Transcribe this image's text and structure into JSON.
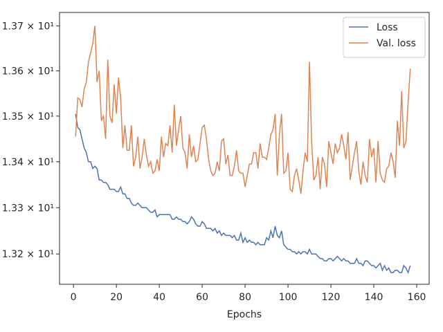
{
  "chart_data": {
    "type": "line",
    "x_label": "Epochs",
    "yscale": "log",
    "legend": "upper right",
    "x": [
      1,
      2,
      3,
      4,
      5,
      6,
      7,
      8,
      9,
      10,
      11,
      12,
      13,
      14,
      15,
      16,
      17,
      18,
      19,
      20,
      21,
      22,
      23,
      24,
      25,
      26,
      27,
      28,
      29,
      30,
      31,
      32,
      33,
      34,
      35,
      36,
      37,
      38,
      39,
      40,
      41,
      42,
      43,
      44,
      45,
      46,
      47,
      48,
      49,
      50,
      51,
      52,
      53,
      54,
      55,
      56,
      57,
      58,
      59,
      60,
      61,
      62,
      63,
      64,
      65,
      66,
      67,
      68,
      69,
      70,
      71,
      72,
      73,
      74,
      75,
      76,
      77,
      78,
      79,
      80,
      81,
      82,
      83,
      84,
      85,
      86,
      87,
      88,
      89,
      90,
      91,
      92,
      93,
      94,
      95,
      96,
      97,
      98,
      99,
      100,
      101,
      102,
      103,
      104,
      105,
      106,
      107,
      108,
      109,
      110,
      111,
      112,
      113,
      114,
      115,
      116,
      117,
      118,
      119,
      120,
      121,
      122,
      123,
      124,
      125,
      126,
      127,
      128,
      129,
      130,
      131,
      132,
      133,
      134,
      135,
      136,
      137,
      138,
      139,
      140,
      141,
      142,
      143,
      144,
      145,
      146,
      147,
      148,
      149,
      150,
      151,
      152,
      153,
      154,
      155,
      156,
      157
    ],
    "series": [
      {
        "name": "Loss",
        "color": "#4c72b0",
        "values": [
          13.505,
          13.475,
          13.47,
          13.45,
          13.43,
          13.42,
          13.4,
          13.4,
          13.385,
          13.39,
          13.385,
          13.36,
          13.36,
          13.355,
          13.355,
          13.35,
          13.34,
          13.34,
          13.34,
          13.335,
          13.335,
          13.345,
          13.33,
          13.33,
          13.32,
          13.32,
          13.31,
          13.305,
          13.305,
          13.31,
          13.305,
          13.3,
          13.3,
          13.3,
          13.295,
          13.29,
          13.29,
          13.295,
          13.28,
          13.285,
          13.285,
          13.285,
          13.285,
          13.285,
          13.285,
          13.275,
          13.275,
          13.28,
          13.275,
          13.275,
          13.27,
          13.27,
          13.265,
          13.27,
          13.28,
          13.275,
          13.265,
          13.26,
          13.26,
          13.27,
          13.265,
          13.255,
          13.255,
          13.255,
          13.25,
          13.255,
          13.245,
          13.25,
          13.24,
          13.245,
          13.24,
          13.24,
          13.24,
          13.235,
          13.24,
          13.23,
          13.23,
          13.245,
          13.225,
          13.235,
          13.225,
          13.23,
          13.225,
          13.225,
          13.22,
          13.225,
          13.22,
          13.22,
          13.22,
          13.235,
          13.23,
          13.25,
          13.235,
          13.26,
          13.24,
          13.235,
          13.25,
          13.22,
          13.215,
          13.21,
          13.21,
          13.205,
          13.205,
          13.2,
          13.205,
          13.2,
          13.205,
          13.205,
          13.2,
          13.21,
          13.2,
          13.2,
          13.2,
          13.195,
          13.19,
          13.19,
          13.185,
          13.185,
          13.19,
          13.19,
          13.185,
          13.19,
          13.195,
          13.19,
          13.185,
          13.19,
          13.185,
          13.185,
          13.18,
          13.18,
          13.18,
          13.19,
          13.18,
          13.18,
          13.175,
          13.185,
          13.185,
          13.18,
          13.175,
          13.175,
          13.17,
          13.175,
          13.18,
          13.165,
          13.175,
          13.165,
          13.17,
          13.16,
          13.16,
          13.165,
          13.165,
          13.16,
          13.16,
          13.175,
          13.17,
          13.16,
          13.175
        ]
      },
      {
        "name": "Val. loss",
        "color": "#dd8452",
        "values": [
          13.455,
          13.54,
          13.537,
          13.52,
          13.56,
          13.575,
          13.62,
          13.64,
          13.66,
          13.7,
          13.575,
          13.6,
          13.49,
          13.5,
          13.45,
          13.625,
          13.5,
          13.485,
          13.57,
          13.505,
          13.585,
          13.54,
          13.43,
          13.48,
          13.425,
          13.425,
          13.48,
          13.39,
          13.41,
          13.455,
          13.385,
          13.41,
          13.45,
          13.415,
          13.39,
          13.4,
          13.375,
          13.38,
          13.405,
          13.38,
          13.455,
          13.41,
          13.44,
          13.435,
          13.48,
          13.42,
          13.525,
          13.435,
          13.47,
          13.5,
          13.43,
          13.42,
          13.385,
          13.46,
          13.41,
          13.435,
          13.4,
          13.405,
          13.44,
          13.475,
          13.48,
          13.45,
          13.405,
          13.38,
          13.37,
          13.375,
          13.4,
          13.38,
          13.445,
          13.45,
          13.395,
          13.415,
          13.37,
          13.37,
          13.39,
          13.425,
          13.38,
          13.375,
          13.375,
          13.345,
          13.37,
          13.395,
          13.395,
          13.42,
          13.42,
          13.385,
          13.44,
          13.41,
          13.41,
          13.405,
          13.43,
          13.46,
          13.47,
          13.505,
          13.37,
          13.46,
          13.505,
          13.375,
          13.38,
          13.42,
          13.34,
          13.335,
          13.37,
          13.385,
          13.36,
          13.33,
          13.38,
          13.42,
          13.4,
          13.62,
          13.445,
          13.36,
          13.37,
          13.41,
          13.34,
          13.41,
          13.395,
          13.345,
          13.445,
          13.42,
          13.395,
          13.44,
          13.42,
          13.43,
          13.46,
          13.435,
          13.405,
          13.465,
          13.36,
          13.39,
          13.42,
          13.445,
          13.38,
          13.35,
          13.4,
          13.37,
          13.355,
          13.45,
          13.41,
          13.43,
          13.355,
          13.445,
          13.375,
          13.36,
          13.355,
          13.385,
          13.39,
          13.42,
          13.4,
          13.365,
          13.49,
          13.435,
          13.555,
          13.43,
          13.445,
          13.53,
          13.605
        ]
      }
    ],
    "xlim": [
      -6.5,
      165.8
    ],
    "xticks": [
      0,
      20,
      40,
      60,
      80,
      100,
      120,
      140,
      160
    ],
    "ylim": [
      13.135,
      13.73
    ],
    "yticks": [
      {
        "value": 13.2,
        "label": "1.32 × 10¹"
      },
      {
        "value": 13.3,
        "label": "1.33 × 10¹"
      },
      {
        "value": 13.4,
        "label": "1.34 × 10¹"
      },
      {
        "value": 13.5,
        "label": "1.35 × 10¹"
      },
      {
        "value": 13.6,
        "label": "1.36 × 10¹"
      },
      {
        "value": 13.7,
        "label": "1.37 × 10¹"
      }
    ]
  }
}
